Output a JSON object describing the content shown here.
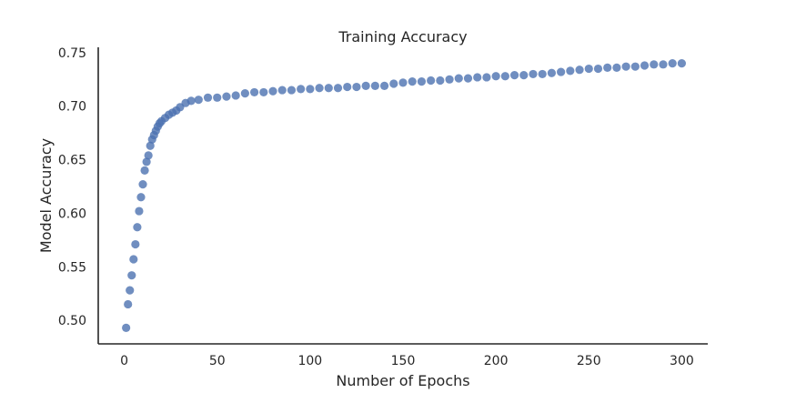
{
  "chart_data": {
    "type": "scatter",
    "title": "Training Accuracy",
    "xlabel": "Number of Epochs",
    "ylabel": "Model Accuracy",
    "xlim": [
      -14,
      314
    ],
    "ylim": [
      0.478,
      0.755
    ],
    "xticks": [
      0,
      50,
      100,
      150,
      200,
      250,
      300
    ],
    "yticks": [
      0.5,
      0.55,
      0.6,
      0.65,
      0.7,
      0.75
    ],
    "ytick_labels": [
      "0.50",
      "0.55",
      "0.60",
      "0.65",
      "0.70",
      "0.75"
    ],
    "grid": false,
    "marker_color": "#4c72b0",
    "series": [
      {
        "x": [
          1,
          2,
          3,
          4,
          5,
          6,
          7,
          8,
          9,
          10,
          11,
          12,
          13,
          14,
          15,
          16,
          17,
          18,
          19,
          20,
          22,
          24,
          26,
          28,
          30,
          33,
          36,
          40,
          45,
          50,
          55,
          60,
          65,
          70,
          75,
          80,
          85,
          90,
          95,
          100,
          105,
          110,
          115,
          120,
          125,
          130,
          135,
          140,
          145,
          150,
          155,
          160,
          165,
          170,
          175,
          180,
          185,
          190,
          195,
          200,
          205,
          210,
          215,
          220,
          225,
          230,
          235,
          240,
          245,
          250,
          255,
          260,
          265,
          270,
          275,
          280,
          285,
          290,
          295,
          300
        ],
        "y": [
          0.493,
          0.515,
          0.528,
          0.542,
          0.557,
          0.571,
          0.587,
          0.602,
          0.615,
          0.627,
          0.64,
          0.648,
          0.654,
          0.663,
          0.669,
          0.673,
          0.677,
          0.681,
          0.684,
          0.686,
          0.689,
          0.692,
          0.694,
          0.696,
          0.699,
          0.703,
          0.705,
          0.706,
          0.708,
          0.708,
          0.709,
          0.71,
          0.712,
          0.713,
          0.713,
          0.714,
          0.715,
          0.715,
          0.716,
          0.716,
          0.717,
          0.717,
          0.717,
          0.718,
          0.718,
          0.719,
          0.719,
          0.719,
          0.721,
          0.722,
          0.723,
          0.723,
          0.724,
          0.724,
          0.725,
          0.726,
          0.726,
          0.727,
          0.727,
          0.728,
          0.728,
          0.729,
          0.729,
          0.73,
          0.73,
          0.731,
          0.732,
          0.733,
          0.734,
          0.735,
          0.735,
          0.736,
          0.736,
          0.737,
          0.737,
          0.738,
          0.739,
          0.739,
          0.74,
          0.74
        ]
      }
    ]
  }
}
